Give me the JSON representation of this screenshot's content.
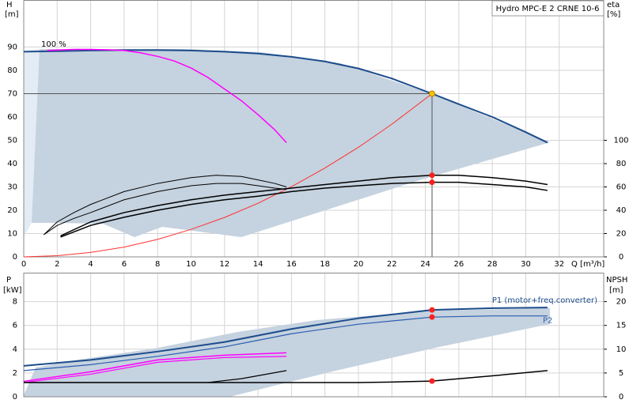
{
  "chart_data": [
    {
      "type": "line",
      "title": "Hydro MPC-E 2 CRNE 10-6",
      "ylabel": "H",
      "yunit": "[m]",
      "y2label": "eta",
      "y2unit": "[%]",
      "xlabel": "Q [m³/h]",
      "annotation": "100 %",
      "xlim": [
        0,
        34.66
      ],
      "xticks": [
        0,
        2,
        4,
        6,
        8,
        10,
        12,
        14,
        16,
        18,
        20,
        22,
        24,
        26,
        28,
        30,
        32
      ],
      "ylim": [
        0,
        110
      ],
      "yticks": [
        0,
        10,
        20,
        30,
        40,
        50,
        60,
        70,
        80,
        90
      ],
      "y2lim": [
        0,
        220
      ],
      "y2ticks": [
        0,
        20,
        40,
        60,
        80,
        100
      ],
      "grid": true,
      "series": [
        {
          "color": "#1c4c8c",
          "width": 2,
          "x": [
            0,
            2,
            4,
            6,
            8,
            10,
            12,
            14,
            16,
            18,
            20,
            22,
            24.4,
            26,
            28,
            30,
            31.3
          ],
          "values": [
            88,
            88.2,
            88.5,
            88.7,
            88.7,
            88.5,
            88,
            87.2,
            85.8,
            83.8,
            80.8,
            76.5,
            70,
            65.5,
            60,
            53.5,
            49
          ]
        },
        {
          "color": "#ff00ff",
          "width": 1.5,
          "x": [
            1.4,
            3,
            4,
            5,
            6,
            7,
            8,
            9,
            10,
            11,
            12,
            13,
            14,
            15,
            15.7
          ],
          "values": [
            88.5,
            89,
            89,
            88.8,
            88.5,
            87.5,
            86,
            84,
            81,
            77,
            72,
            67,
            61,
            54.5,
            49
          ]
        },
        {
          "color": "#ff3030",
          "width": 1,
          "x": [
            0,
            2,
            4,
            6,
            8,
            10,
            12,
            14,
            16,
            18,
            20,
            22,
            24.4
          ],
          "values": [
            0,
            0.5,
            1.9,
            4.2,
            7.5,
            11.8,
            16.9,
            23.0,
            30.1,
            38.1,
            47.0,
            56.9,
            70
          ]
        },
        {
          "color": "#000000",
          "width": 1.5,
          "axis": "y2",
          "x": [
            2.2,
            4,
            6,
            8,
            10,
            12,
            14,
            16,
            18,
            20,
            22,
            24.4,
            26,
            28,
            30,
            31.3
          ],
          "values": [
            18,
            30,
            38,
            44,
            49,
            53,
            56,
            59,
            62,
            65,
            68,
            70,
            70,
            68,
            65,
            62
          ]
        },
        {
          "color": "#000000",
          "width": 1.5,
          "axis": "y2",
          "x": [
            2.2,
            4,
            6,
            8,
            10,
            12,
            14,
            16,
            18,
            20,
            22,
            24.4,
            26,
            28,
            30,
            31.3
          ],
          "values": [
            17,
            27,
            34,
            40,
            45,
            49,
            52,
            56,
            59,
            61,
            63,
            64,
            64,
            62,
            60,
            57
          ]
        },
        {
          "color": "#000000",
          "width": 1,
          "axis": "y2",
          "x": [
            1.2,
            2,
            3,
            4,
            6,
            8,
            10,
            11.5,
            13,
            14,
            15,
            15.7
          ],
          "values": [
            19,
            30,
            38,
            45,
            56,
            63,
            68,
            70,
            69,
            66,
            63,
            60
          ]
        },
        {
          "color": "#000000",
          "width": 1,
          "axis": "y2",
          "x": [
            1.2,
            2,
            3,
            4,
            6,
            8,
            10,
            11.5,
            13,
            14,
            15,
            15.7
          ],
          "values": [
            19,
            27,
            33,
            38,
            49,
            56,
            61,
            63,
            63,
            61,
            59,
            58
          ]
        }
      ],
      "points": [
        {
          "x": 24.4,
          "y": 70,
          "color": "#f5c400"
        },
        {
          "x": 24.4,
          "y": 70,
          "axis": "y2",
          "color": "#ff2020"
        },
        {
          "x": 24.4,
          "y": 64,
          "axis": "y2",
          "color": "#ff2020"
        }
      ]
    },
    {
      "type": "line",
      "ylabel": "P",
      "yunit": "[kW]",
      "y2label": "NPSH",
      "y2unit": "[m]",
      "xlim": [
        0,
        34.66
      ],
      "xticks": [
        0,
        2,
        4,
        6,
        8,
        10,
        12,
        14,
        16,
        18,
        20,
        22,
        24,
        26,
        28,
        30,
        32
      ],
      "ylim": [
        0,
        10.4
      ],
      "yticks": [
        0,
        2,
        4,
        6,
        8
      ],
      "y2lim": [
        0,
        26
      ],
      "y2ticks": [
        0,
        5,
        10,
        15,
        20
      ],
      "grid": true,
      "series": [
        {
          "name": "P1 (motor+freq.converter)",
          "color": "#1c4c8c",
          "width": 2,
          "x": [
            0,
            4,
            8,
            12,
            16,
            20,
            24.4,
            28,
            31.3
          ],
          "values": [
            2.6,
            3.1,
            3.8,
            4.6,
            5.7,
            6.6,
            7.3,
            7.45,
            7.5
          ]
        },
        {
          "name": "P2",
          "color": "#2a5cb0",
          "width": 1.2,
          "x": [
            0,
            4,
            8,
            12,
            16,
            20,
            24.4,
            28,
            31.3
          ],
          "values": [
            2.2,
            2.7,
            3.4,
            4.2,
            5.3,
            6.1,
            6.7,
            6.8,
            6.8
          ]
        },
        {
          "color": "#ff00ff",
          "width": 1.5,
          "x": [
            0,
            4,
            8,
            12,
            15.7
          ],
          "values": [
            1.3,
            2.1,
            3.1,
            3.5,
            3.7
          ]
        },
        {
          "color": "#ff00ff",
          "width": 1.2,
          "x": [
            0,
            4,
            8,
            12,
            15.7
          ],
          "values": [
            1.2,
            1.9,
            2.9,
            3.3,
            3.4
          ]
        },
        {
          "color": "#000000",
          "width": 1.2,
          "axis": "y2",
          "x": [
            0,
            6,
            11,
            13,
            15.7
          ],
          "values": [
            3.0,
            3.0,
            3.0,
            3.8,
            5.5
          ]
        },
        {
          "color": "#000000",
          "width": 1.5,
          "axis": "y2",
          "x": [
            0,
            10,
            20,
            22,
            24.4,
            28,
            31.3
          ],
          "values": [
            3.0,
            3.0,
            3.0,
            3.1,
            3.3,
            4.4,
            5.5
          ]
        }
      ],
      "points": [
        {
          "x": 24.4,
          "y": 7.3,
          "color": "#ff2020"
        },
        {
          "x": 24.4,
          "y": 6.7,
          "color": "#ff2020"
        },
        {
          "x": 24.4,
          "y": 3.3,
          "axis": "y2",
          "color": "#ff2020"
        }
      ]
    }
  ]
}
